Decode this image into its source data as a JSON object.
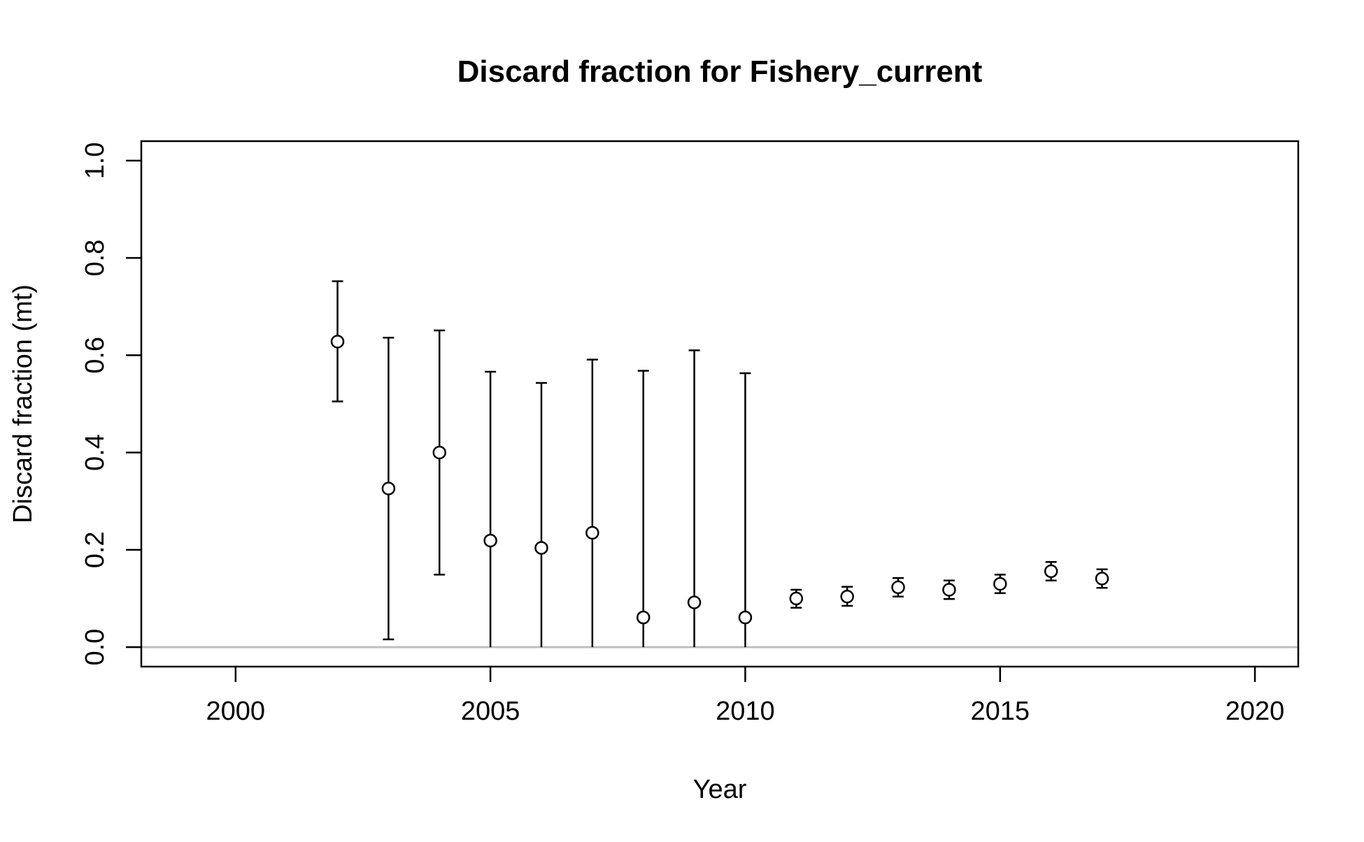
{
  "chart_data": {
    "type": "scatter",
    "title": "Discard fraction for Fishery_current",
    "xlabel": "Year",
    "ylabel": "Discard fraction (mt)",
    "xlim": [
      1998.15,
      2020.85
    ],
    "ylim": [
      -0.04,
      1.04
    ],
    "x_ticks": [
      2000,
      2005,
      2010,
      2015,
      2020
    ],
    "y_ticks": [
      0.0,
      0.2,
      0.4,
      0.6,
      0.8,
      1.0
    ],
    "x_tick_labels": [
      "2000",
      "2005",
      "2010",
      "2015",
      "2020"
    ],
    "y_tick_labels": [
      "0.0",
      "0.2",
      "0.4",
      "0.6",
      "0.8",
      "1.0"
    ],
    "reference_line": 0.0,
    "series": [
      {
        "marker": "open-circle",
        "points": [
          {
            "x": 2002,
            "y": 0.628,
            "lower": 0.505,
            "upper": 0.752
          },
          {
            "x": 2003,
            "y": 0.326,
            "lower": 0.016,
            "upper": 0.636
          },
          {
            "x": 2004,
            "y": 0.4,
            "lower": 0.149,
            "upper": 0.651
          },
          {
            "x": 2005,
            "y": 0.219,
            "lower": 0.0,
            "upper": 0.566
          },
          {
            "x": 2006,
            "y": 0.204,
            "lower": 0.0,
            "upper": 0.543
          },
          {
            "x": 2007,
            "y": 0.235,
            "lower": 0.0,
            "upper": 0.591
          },
          {
            "x": 2008,
            "y": 0.061,
            "lower": 0.0,
            "upper": 0.568
          },
          {
            "x": 2009,
            "y": 0.092,
            "lower": 0.0,
            "upper": 0.61
          },
          {
            "x": 2010,
            "y": 0.061,
            "lower": 0.0,
            "upper": 0.563
          },
          {
            "x": 2011,
            "y": 0.1,
            "lower": 0.081,
            "upper": 0.118
          },
          {
            "x": 2012,
            "y": 0.104,
            "lower": 0.085,
            "upper": 0.124
          },
          {
            "x": 2013,
            "y": 0.123,
            "lower": 0.104,
            "upper": 0.142
          },
          {
            "x": 2014,
            "y": 0.118,
            "lower": 0.099,
            "upper": 0.137
          },
          {
            "x": 2015,
            "y": 0.13,
            "lower": 0.111,
            "upper": 0.149
          },
          {
            "x": 2016,
            "y": 0.156,
            "lower": 0.137,
            "upper": 0.175
          },
          {
            "x": 2017,
            "y": 0.141,
            "lower": 0.122,
            "upper": 0.16
          }
        ]
      }
    ],
    "grid": false,
    "colors": {
      "points": "#000000",
      "reference_line": "#bebebe",
      "axes": "#000000"
    }
  }
}
